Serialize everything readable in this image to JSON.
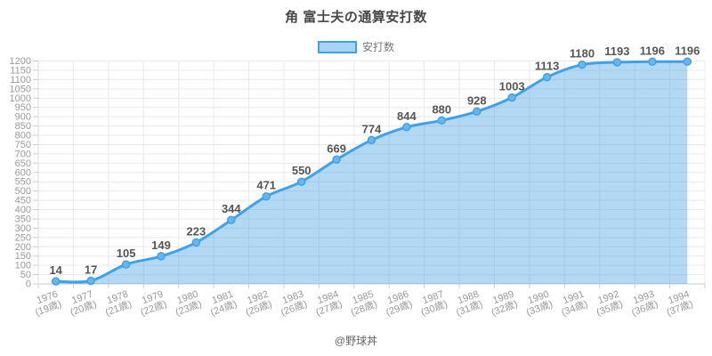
{
  "page": {
    "title": "角 富士夫の通算安打数"
  },
  "chart_data": {
    "type": "area",
    "title": "角 富士夫の通算安打数",
    "legend": {
      "label": "安打数",
      "position": "top"
    },
    "categories_year": [
      "1976",
      "1977",
      "1978",
      "1979",
      "1980",
      "1981",
      "1982",
      "1983",
      "1984",
      "1985",
      "1986",
      "1987",
      "1988",
      "1989",
      "1990",
      "1991",
      "1992",
      "1993",
      "1994"
    ],
    "categories_age": [
      "(19歳)",
      "(20歳)",
      "(21歳)",
      "(22歳)",
      "(23歳)",
      "(24歳)",
      "(25歳)",
      "(26歳)",
      "(27歳)",
      "(28歳)",
      "(29歳)",
      "(30歳)",
      "(31歳)",
      "(32歳)",
      "(33歳)",
      "(34歳)",
      "(35歳)",
      "(36歳)",
      "(37歳)"
    ],
    "values": [
      14,
      17,
      105,
      149,
      223,
      344,
      471,
      550,
      669,
      774,
      844,
      880,
      928,
      1003,
      1113,
      1180,
      1193,
      1196,
      1196
    ],
    "xlabel": "",
    "ylabel": "",
    "ylim": [
      0,
      1200
    ],
    "ytick_step": 50,
    "grid": true,
    "value_labels_shown": true,
    "colors": {
      "line": "#3fa2e8",
      "area_fill": "rgba(74,163,229,0.42)",
      "marker_fill": "#6ab6ec",
      "marker_stroke": "#3fa2e8",
      "grid": "#e9e9e9",
      "axis": "#c9c9c9",
      "tick_color": "#cccccc",
      "tick_label": "#999999",
      "value_label": "#555555"
    }
  },
  "footer": {
    "credit": "@野球丼"
  }
}
